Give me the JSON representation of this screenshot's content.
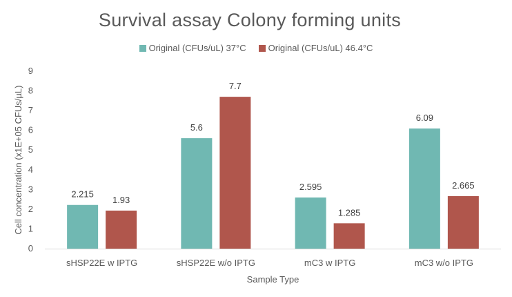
{
  "chart_data": {
    "type": "bar",
    "title": "Survival assay Colony forming units",
    "xlabel": "Sample Type",
    "ylabel": "Cell concentration (x1E+05 CFUs/µL)",
    "categories": [
      "sHSP22E w IPTG",
      "sHSP22E w/o IPTG",
      "mC3 w IPTG",
      "mC3 w/o IPTG"
    ],
    "series": [
      {
        "name": "Original (CFUs/uL) 37°C",
        "values": [
          2.215,
          5.6,
          2.595,
          6.09
        ],
        "labels": [
          "2.215",
          "5.6",
          "2.595",
          "6.09"
        ],
        "color": "#70b8b2"
      },
      {
        "name": "Original (CFUs/uL) 46.4°C",
        "values": [
          1.93,
          7.7,
          1.285,
          2.665
        ],
        "labels": [
          "1.93",
          "7.7",
          "1.285",
          "2.665"
        ],
        "color": "#b0564c"
      }
    ],
    "ylim": [
      0,
      9
    ],
    "yticks": [
      "0",
      "1",
      "2",
      "3",
      "4",
      "5",
      "6",
      "7",
      "8",
      "9"
    ],
    "grid": false,
    "legend_position": "top"
  }
}
